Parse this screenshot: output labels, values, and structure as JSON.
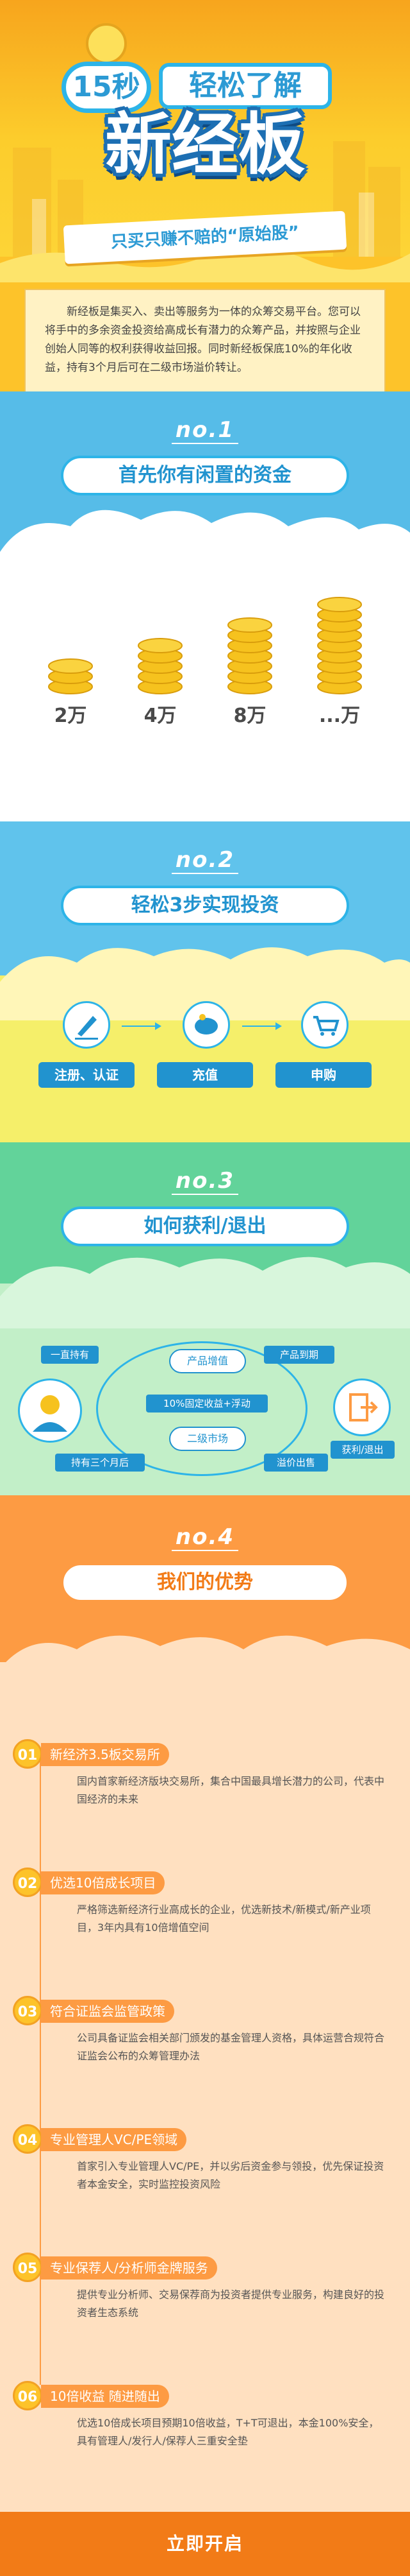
{
  "hero": {
    "time": "15秒",
    "tagline": "轻松了解",
    "title": "新经板",
    "ribbon": "只买只赚不赔的“原始股”",
    "intro": "新经板是集买入、卖出等服务为一体的众筹交易平台。您可以将手中的多余资金投资给高成长有潜力的众筹产品，并按照与企业创始人同等的权利获得收益回报。同时新经板保底10%的年化收益，持有3个月后可在二级市场溢价转让。"
  },
  "s1": {
    "no": "no.1",
    "title": "首先你有闲置的资金",
    "amounts": [
      "2万",
      "4万",
      "8万",
      "...万"
    ]
  },
  "s2": {
    "no": "no.2",
    "title": "轻松3步实现投资",
    "steps": [
      "注册、认证",
      "充值",
      "申购"
    ]
  },
  "s3": {
    "no": "no.3",
    "title": "如何获利/退出",
    "hold_all": "一直持有",
    "hold_3m": "持有三个月后",
    "product": "产品增值",
    "maturity": "产品到期",
    "guarantee": "10%固定收益+浮动",
    "secondary": "二级市场",
    "premium": "溢价出售",
    "profit": "获利/退出"
  },
  "s4": {
    "no": "no.4",
    "title": "我们的优势",
    "items": [
      {
        "num": "01",
        "title": "新经济3.5板交易所",
        "text": "国内首家新经济版块交易所，集合中国最具增长潜力的公司，代表中国经济的未来"
      },
      {
        "num": "02",
        "title": "优选10倍成长项目",
        "text": "严格筛选新经济行业高成长的企业，优选新技术/新模式/新产业项目，3年内具有10倍增值空间"
      },
      {
        "num": "03",
        "title": "符合证监会监管政策",
        "text": "公司具备证监会相关部门颁发的基金管理人资格，具体运营合规符合证监会公布的众筹管理办法"
      },
      {
        "num": "04",
        "title": "专业管理人VC/PE领域",
        "text": "首家引入专业管理人VC/PE，并以劣后资金参与领投，优先保证投资者本金安全，实时监控投资风险"
      },
      {
        "num": "05",
        "title": "专业保荐人/分析师金牌服务",
        "text": "提供专业分析师、交易保荐商为投资者提供专业服务，构建良好的投资者生态系统"
      },
      {
        "num": "06",
        "title": "10倍收益 随进随出",
        "text": "优选10倍成长项目预期10倍收益，T+T可退出，本金100%安全，具有管理人/发行人/保荐人三重安全垫"
      }
    ],
    "cta": "立即开启"
  }
}
